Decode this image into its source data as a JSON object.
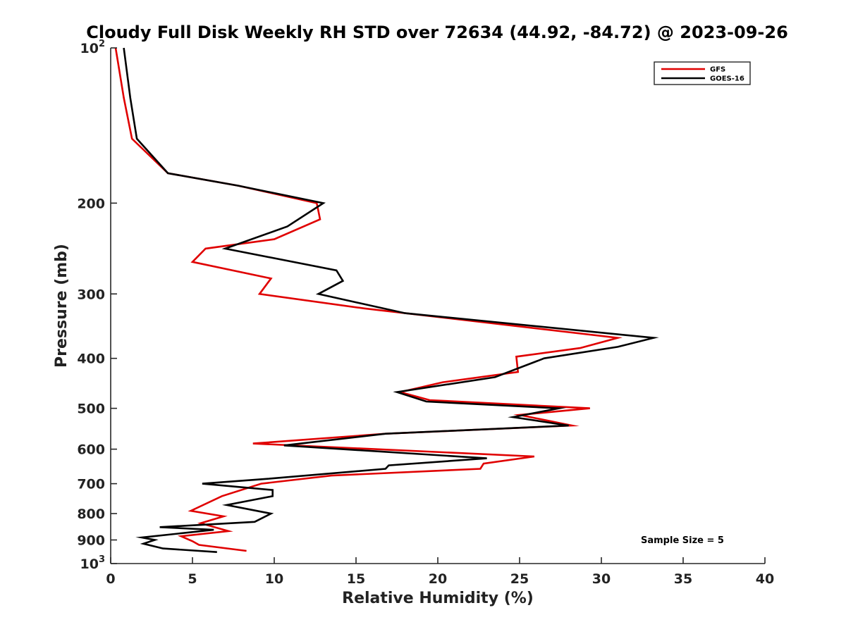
{
  "chart_data": {
    "type": "line",
    "title": "Cloudy Full Disk Weekly RH STD over 72634 (44.92, -84.72) @ 2023-09-26",
    "xlabel": "Relative Humidity (%)",
    "ylabel": "Pressure (mb)",
    "xlim": [
      0,
      40
    ],
    "ylim": [
      100,
      1000
    ],
    "y_scale": "log",
    "y_reversed": true,
    "x_ticks": [
      "0",
      "5",
      "10",
      "15",
      "20",
      "25",
      "30",
      "35",
      "40"
    ],
    "y_ticks": [
      {
        "value": 100,
        "base": "10",
        "exp": "2"
      },
      {
        "value": 200,
        "label": "200"
      },
      {
        "value": 300,
        "label": "300"
      },
      {
        "value": 400,
        "label": "400"
      },
      {
        "value": 500,
        "label": "500"
      },
      {
        "value": 600,
        "label": "600"
      },
      {
        "value": 700,
        "label": "700"
      },
      {
        "value": 800,
        "label": "800"
      },
      {
        "value": 900,
        "label": "900"
      },
      {
        "value": 1000,
        "base": "10",
        "exp": "3"
      }
    ],
    "grid": false,
    "legend_position": "top-right",
    "annotation": "Sample Size = 5",
    "series": [
      {
        "name": "GFS",
        "color": "#e00000",
        "points": [
          [
            0.3,
            100
          ],
          [
            0.8,
            125
          ],
          [
            1.3,
            150
          ],
          [
            3.5,
            175
          ],
          [
            7.8,
            185
          ],
          [
            12.6,
            200
          ],
          [
            12.8,
            215
          ],
          [
            10.0,
            235
          ],
          [
            5.8,
            245
          ],
          [
            5.0,
            260
          ],
          [
            9.8,
            280
          ],
          [
            9.1,
            300
          ],
          [
            15.5,
            320
          ],
          [
            31.0,
            365
          ],
          [
            28.7,
            382
          ],
          [
            24.8,
            397
          ],
          [
            24.9,
            425
          ],
          [
            20.3,
            445
          ],
          [
            17.7,
            465
          ],
          [
            19.5,
            482
          ],
          [
            29.3,
            500
          ],
          [
            25.0,
            515
          ],
          [
            28.2,
            540
          ],
          [
            16.8,
            560
          ],
          [
            8.7,
            585
          ],
          [
            25.9,
            620
          ],
          [
            22.8,
            640
          ],
          [
            22.6,
            655
          ],
          [
            13.5,
            675
          ],
          [
            9.2,
            700
          ],
          [
            6.8,
            740
          ],
          [
            4.9,
            790
          ],
          [
            6.9,
            810
          ],
          [
            5.5,
            835
          ],
          [
            7.2,
            865
          ],
          [
            4.3,
            885
          ],
          [
            5.0,
            905
          ],
          [
            5.4,
            920
          ],
          [
            8.3,
            945
          ]
        ]
      },
      {
        "name": "GOES-16",
        "color": "#000000",
        "points": [
          [
            0.8,
            100
          ],
          [
            1.2,
            125
          ],
          [
            1.6,
            150
          ],
          [
            3.5,
            175
          ],
          [
            7.8,
            185
          ],
          [
            13.0,
            200
          ],
          [
            10.8,
            222
          ],
          [
            7.0,
            245
          ],
          [
            13.8,
            270
          ],
          [
            14.2,
            283
          ],
          [
            12.7,
            300
          ],
          [
            18.0,
            327
          ],
          [
            33.2,
            365
          ],
          [
            31.0,
            380
          ],
          [
            26.5,
            400
          ],
          [
            23.5,
            435
          ],
          [
            17.5,
            465
          ],
          [
            19.3,
            485
          ],
          [
            27.4,
            500
          ],
          [
            24.6,
            520
          ],
          [
            28.0,
            540
          ],
          [
            16.8,
            560
          ],
          [
            10.6,
            590
          ],
          [
            23.0,
            625
          ],
          [
            17.0,
            645
          ],
          [
            16.8,
            655
          ],
          [
            9.6,
            685
          ],
          [
            5.6,
            700
          ],
          [
            9.9,
            720
          ],
          [
            9.9,
            740
          ],
          [
            7.1,
            770
          ],
          [
            9.8,
            800
          ],
          [
            8.8,
            830
          ],
          [
            3.0,
            850
          ],
          [
            6.3,
            860
          ],
          [
            1.9,
            890
          ],
          [
            2.7,
            900
          ],
          [
            2.0,
            915
          ],
          [
            3.2,
            935
          ],
          [
            6.5,
            950
          ]
        ]
      }
    ]
  }
}
